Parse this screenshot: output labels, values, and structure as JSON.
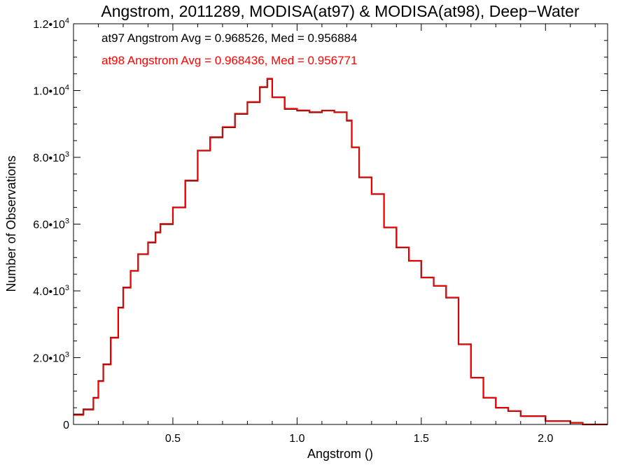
{
  "chart_data": {
    "type": "line",
    "step": true,
    "title": "Angstrom, 2011289, MODISA(at97) & MODISA(at98), Deep−Water",
    "xlabel": "Angstrom ()",
    "ylabel": "Number of Observations",
    "xlim": [
      0.1,
      2.25
    ],
    "ylim": [
      0,
      12000
    ],
    "grid": false,
    "x_ticks": [
      {
        "value": 0.5,
        "label": "0.5"
      },
      {
        "value": 1.0,
        "label": "1.0"
      },
      {
        "value": 1.5,
        "label": "1.5"
      },
      {
        "value": 2.0,
        "label": "2.0"
      }
    ],
    "y_ticks": [
      {
        "value": 0,
        "mantissa": "0",
        "exponent": ""
      },
      {
        "value": 2000,
        "mantissa": "2.0•10",
        "exponent": "3"
      },
      {
        "value": 4000,
        "mantissa": "4.0•10",
        "exponent": "3"
      },
      {
        "value": 6000,
        "mantissa": "6.0•10",
        "exponent": "3"
      },
      {
        "value": 8000,
        "mantissa": "8.0•10",
        "exponent": "3"
      },
      {
        "value": 10000,
        "mantissa": "1.0•10",
        "exponent": "4"
      },
      {
        "value": 12000,
        "mantissa": "1.2•10",
        "exponent": "4"
      }
    ],
    "annotations": [
      {
        "text": "at97 Angstrom Avg = 0.968526, Med = 0.956884",
        "color": "#000000"
      },
      {
        "text": "at98 Angstrom Avg = 0.968436, Med = 0.956771",
        "color": "#ff0000"
      }
    ],
    "series": [
      {
        "color": "#000000",
        "x": [
          0.1,
          0.14,
          0.18,
          0.2,
          0.22,
          0.25,
          0.28,
          0.3,
          0.33,
          0.36,
          0.4,
          0.43,
          0.45,
          0.5,
          0.55,
          0.6,
          0.65,
          0.7,
          0.75,
          0.8,
          0.85,
          0.88,
          0.9,
          0.95,
          1.0,
          1.05,
          1.1,
          1.15,
          1.2,
          1.22,
          1.25,
          1.3,
          1.35,
          1.4,
          1.45,
          1.5,
          1.55,
          1.6,
          1.65,
          1.7,
          1.75,
          1.8,
          1.85,
          1.9,
          2.0,
          2.1,
          2.15,
          2.25
        ],
        "y": [
          300,
          450,
          800,
          1300,
          1800,
          2600,
          3500,
          4100,
          4600,
          5100,
          5450,
          5750,
          6000,
          6500,
          7300,
          8200,
          8600,
          8900,
          9300,
          9650,
          10100,
          10350,
          9800,
          9450,
          9400,
          9350,
          9400,
          9350,
          9100,
          8300,
          7400,
          6900,
          5900,
          5300,
          4900,
          4400,
          4150,
          3800,
          2400,
          1400,
          800,
          500,
          400,
          250,
          100,
          50,
          0,
          0
        ]
      },
      {
        "color": "#ff0000",
        "x": [
          0.1,
          0.14,
          0.18,
          0.2,
          0.22,
          0.25,
          0.28,
          0.3,
          0.33,
          0.36,
          0.4,
          0.43,
          0.45,
          0.5,
          0.55,
          0.6,
          0.65,
          0.7,
          0.75,
          0.8,
          0.85,
          0.88,
          0.9,
          0.95,
          1.0,
          1.05,
          1.1,
          1.15,
          1.2,
          1.22,
          1.25,
          1.3,
          1.35,
          1.4,
          1.45,
          1.5,
          1.55,
          1.6,
          1.65,
          1.7,
          1.75,
          1.8,
          1.85,
          1.9,
          2.0,
          2.1,
          2.15,
          2.25
        ],
        "y": [
          280,
          440,
          790,
          1290,
          1790,
          2590,
          3490,
          4090,
          4600,
          5100,
          5460,
          5760,
          6010,
          6500,
          7310,
          8200,
          8610,
          8910,
          9310,
          9660,
          10110,
          10360,
          9800,
          9460,
          9410,
          9360,
          9400,
          9350,
          9110,
          8300,
          7400,
          6900,
          5900,
          5300,
          4900,
          4400,
          4150,
          3800,
          2400,
          1400,
          800,
          500,
          400,
          250,
          100,
          50,
          0,
          0
        ]
      }
    ]
  }
}
